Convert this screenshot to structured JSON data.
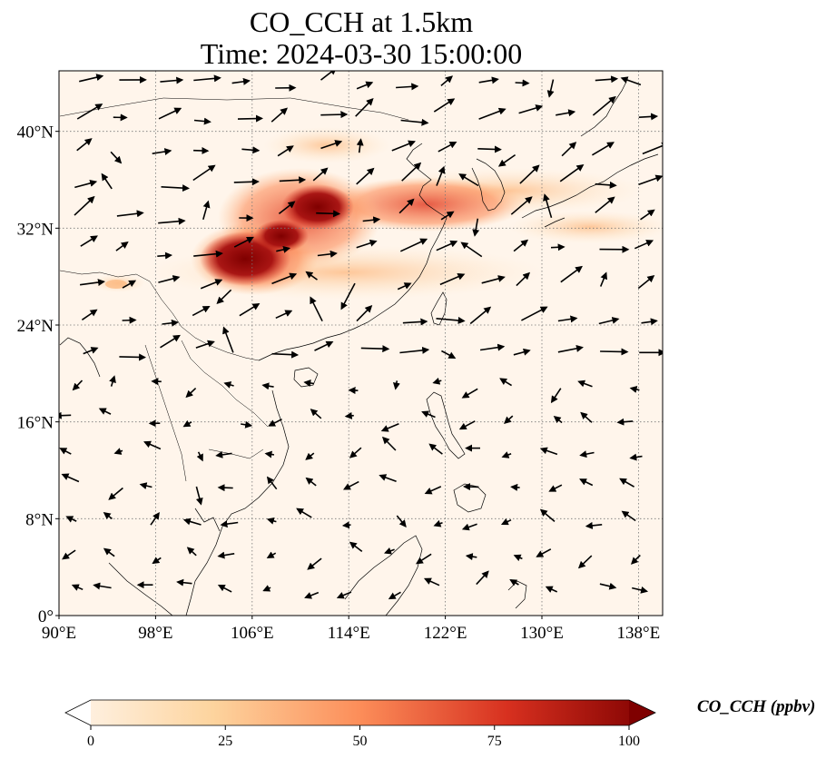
{
  "title": "CO_CCH at 1.5km",
  "subtitle": "Time: 2024-03-30 15:00:00",
  "map": {
    "lon_range": [
      90,
      140
    ],
    "lat_range": [
      0,
      45
    ],
    "lon_ticks": [
      {
        "value": 90,
        "label": "90°E"
      },
      {
        "value": 98,
        "label": "98°E"
      },
      {
        "value": 106,
        "label": "106°E"
      },
      {
        "value": 114,
        "label": "114°E"
      },
      {
        "value": 122,
        "label": "122°E"
      },
      {
        "value": 130,
        "label": "130°E"
      },
      {
        "value": 138,
        "label": "138°E"
      }
    ],
    "lat_ticks": [
      {
        "value": 0,
        "label": "0°"
      },
      {
        "value": 8,
        "label": "8°N"
      },
      {
        "value": 16,
        "label": "16°N"
      },
      {
        "value": 24,
        "label": "24°N"
      },
      {
        "value": 32,
        "label": "32°N"
      },
      {
        "value": 40,
        "label": "40°N"
      }
    ],
    "gridlines": "dotted",
    "background_color": "#fff5eb",
    "coastline_color": "#000000",
    "wind_vectors": true
  },
  "colorbar": {
    "label": "CO_CCH (ppbv)",
    "min": 0,
    "max": 100,
    "extend": "both",
    "colormap": "OrRd",
    "ticks": [
      {
        "value": 0,
        "label": "0"
      },
      {
        "value": 25,
        "label": "25"
      },
      {
        "value": 50,
        "label": "50"
      },
      {
        "value": 75,
        "label": "75"
      },
      {
        "value": 100,
        "label": "100"
      }
    ]
  }
}
